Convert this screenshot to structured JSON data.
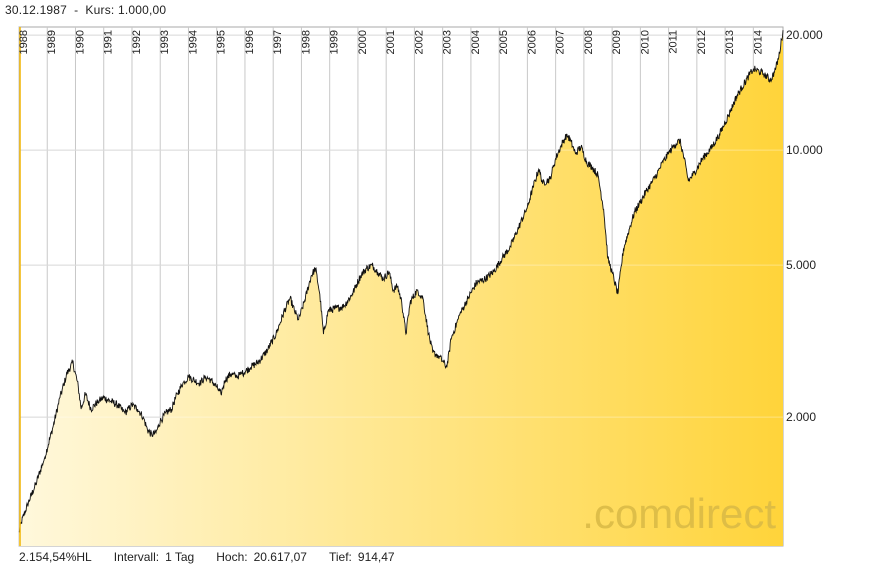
{
  "header": {
    "start_date": "30.12.1987",
    "separator": "-",
    "price_label": "Kurs:",
    "price_value": "1.000,00"
  },
  "footer": {
    "performance": "2.154,54%HL",
    "interval_label": "Intervall:",
    "interval_value": "1 Tag",
    "high_label": "Hoch:",
    "high_value": "20.617,07",
    "low_label": "Tief:",
    "low_value": "914,47"
  },
  "watermark": ".comdirect",
  "colors": {
    "fill_light": "#fff8dc",
    "fill_dark": "#ffd43a",
    "line": "#111111",
    "grid": "#c8c8c8",
    "start_marker": "#f0b400",
    "watermark": "#d8b845"
  },
  "chart_data": {
    "type": "area",
    "title": "",
    "xlabel": "",
    "ylabel": "",
    "y_scale": "log",
    "ylim": [
      920,
      21000
    ],
    "y_ticks": [
      {
        "value": 2000,
        "label": "2.000"
      },
      {
        "value": 5000,
        "label": "5.000"
      },
      {
        "value": 10000,
        "label": "10.000"
      },
      {
        "value": 20000,
        "label": "20.000"
      }
    ],
    "x_range": [
      1988.0,
      2015.05
    ],
    "x_ticks": [
      "1988",
      "1989",
      "1990",
      "1991",
      "1992",
      "1993",
      "1994",
      "1995",
      "1996",
      "1997",
      "1998",
      "1999",
      "2000",
      "2001",
      "2002",
      "2003",
      "2004",
      "2005",
      "2006",
      "2007",
      "2008",
      "2009",
      "2010",
      "2011",
      "2012",
      "2013",
      "2014"
    ],
    "series": [
      {
        "name": "Kurs",
        "points": [
          [
            1988.0,
            1000
          ],
          [
            1988.08,
            1060
          ],
          [
            1988.3,
            1180
          ],
          [
            1988.6,
            1340
          ],
          [
            1988.9,
            1560
          ],
          [
            1989.2,
            1880
          ],
          [
            1989.45,
            2250
          ],
          [
            1989.7,
            2600
          ],
          [
            1989.9,
            2780
          ],
          [
            1990.0,
            2600
          ],
          [
            1990.1,
            2400
          ],
          [
            1990.2,
            2100
          ],
          [
            1990.35,
            2300
          ],
          [
            1990.55,
            2100
          ],
          [
            1990.8,
            2200
          ],
          [
            1991.0,
            2250
          ],
          [
            1991.25,
            2200
          ],
          [
            1991.5,
            2150
          ],
          [
            1991.75,
            2050
          ],
          [
            1992.0,
            2150
          ],
          [
            1992.2,
            2100
          ],
          [
            1992.4,
            2000
          ],
          [
            1992.55,
            1850
          ],
          [
            1992.7,
            1800
          ],
          [
            1992.85,
            1820
          ],
          [
            1993.0,
            1950
          ],
          [
            1993.2,
            2050
          ],
          [
            1993.4,
            2100
          ],
          [
            1993.6,
            2300
          ],
          [
            1993.8,
            2450
          ],
          [
            1994.0,
            2550
          ],
          [
            1994.2,
            2500
          ],
          [
            1994.4,
            2450
          ],
          [
            1994.6,
            2550
          ],
          [
            1994.8,
            2500
          ],
          [
            1995.0,
            2400
          ],
          [
            1995.15,
            2300
          ],
          [
            1995.3,
            2500
          ],
          [
            1995.5,
            2600
          ],
          [
            1995.7,
            2550
          ],
          [
            1995.9,
            2600
          ],
          [
            1996.2,
            2700
          ],
          [
            1996.5,
            2800
          ],
          [
            1996.8,
            3000
          ],
          [
            1997.1,
            3300
          ],
          [
            1997.4,
            3800
          ],
          [
            1997.6,
            4100
          ],
          [
            1997.75,
            3800
          ],
          [
            1997.9,
            3600
          ],
          [
            1998.1,
            4000
          ],
          [
            1998.35,
            4700
          ],
          [
            1998.5,
            4900
          ],
          [
            1998.65,
            4200
          ],
          [
            1998.78,
            3300
          ],
          [
            1998.95,
            3800
          ],
          [
            1999.2,
            3850
          ],
          [
            1999.5,
            3900
          ],
          [
            1999.8,
            4200
          ],
          [
            2000.1,
            4700
          ],
          [
            2000.3,
            4900
          ],
          [
            2000.5,
            5000
          ],
          [
            2000.7,
            4800
          ],
          [
            2000.9,
            4600
          ],
          [
            2001.1,
            4800
          ],
          [
            2001.25,
            4300
          ],
          [
            2001.4,
            4400
          ],
          [
            2001.55,
            4000
          ],
          [
            2001.7,
            3300
          ],
          [
            2001.85,
            4000
          ],
          [
            2002.1,
            4300
          ],
          [
            2002.3,
            4100
          ],
          [
            2002.5,
            3300
          ],
          [
            2002.65,
            2950
          ],
          [
            2002.85,
            2900
          ],
          [
            2003.0,
            2800
          ],
          [
            2003.15,
            2700
          ],
          [
            2003.3,
            3200
          ],
          [
            2003.6,
            3700
          ],
          [
            2003.9,
            4100
          ],
          [
            2004.2,
            4500
          ],
          [
            2004.5,
            4600
          ],
          [
            2004.8,
            4800
          ],
          [
            2005.1,
            5200
          ],
          [
            2005.4,
            5600
          ],
          [
            2005.7,
            6300
          ],
          [
            2006.0,
            7100
          ],
          [
            2006.2,
            8000
          ],
          [
            2006.4,
            8900
          ],
          [
            2006.55,
            8200
          ],
          [
            2006.8,
            8400
          ],
          [
            2007.0,
            9500
          ],
          [
            2007.2,
            10300
          ],
          [
            2007.4,
            11000
          ],
          [
            2007.55,
            10500
          ],
          [
            2007.7,
            9800
          ],
          [
            2007.9,
            10200
          ],
          [
            2008.1,
            9300
          ],
          [
            2008.3,
            9000
          ],
          [
            2008.5,
            8600
          ],
          [
            2008.7,
            7000
          ],
          [
            2008.85,
            5200
          ],
          [
            2009.0,
            4800
          ],
          [
            2009.2,
            4200
          ],
          [
            2009.4,
            5500
          ],
          [
            2009.6,
            6200
          ],
          [
            2009.8,
            6900
          ],
          [
            2010.0,
            7300
          ],
          [
            2010.2,
            7800
          ],
          [
            2010.4,
            8200
          ],
          [
            2010.6,
            8700
          ],
          [
            2010.8,
            9300
          ],
          [
            2011.0,
            9800
          ],
          [
            2011.2,
            10300
          ],
          [
            2011.4,
            10600
          ],
          [
            2011.55,
            9500
          ],
          [
            2011.7,
            8300
          ],
          [
            2011.9,
            8700
          ],
          [
            2012.2,
            9500
          ],
          [
            2012.5,
            10100
          ],
          [
            2012.8,
            11000
          ],
          [
            2013.0,
            11800
          ],
          [
            2013.2,
            12700
          ],
          [
            2013.4,
            13800
          ],
          [
            2013.6,
            14600
          ],
          [
            2013.8,
            15500
          ],
          [
            2014.0,
            16300
          ],
          [
            2014.2,
            16100
          ],
          [
            2014.4,
            15800
          ],
          [
            2014.6,
            15200
          ],
          [
            2014.75,
            16000
          ],
          [
            2014.9,
            17500
          ],
          [
            2015.0,
            19500
          ],
          [
            2015.05,
            20600
          ]
        ]
      }
    ]
  }
}
